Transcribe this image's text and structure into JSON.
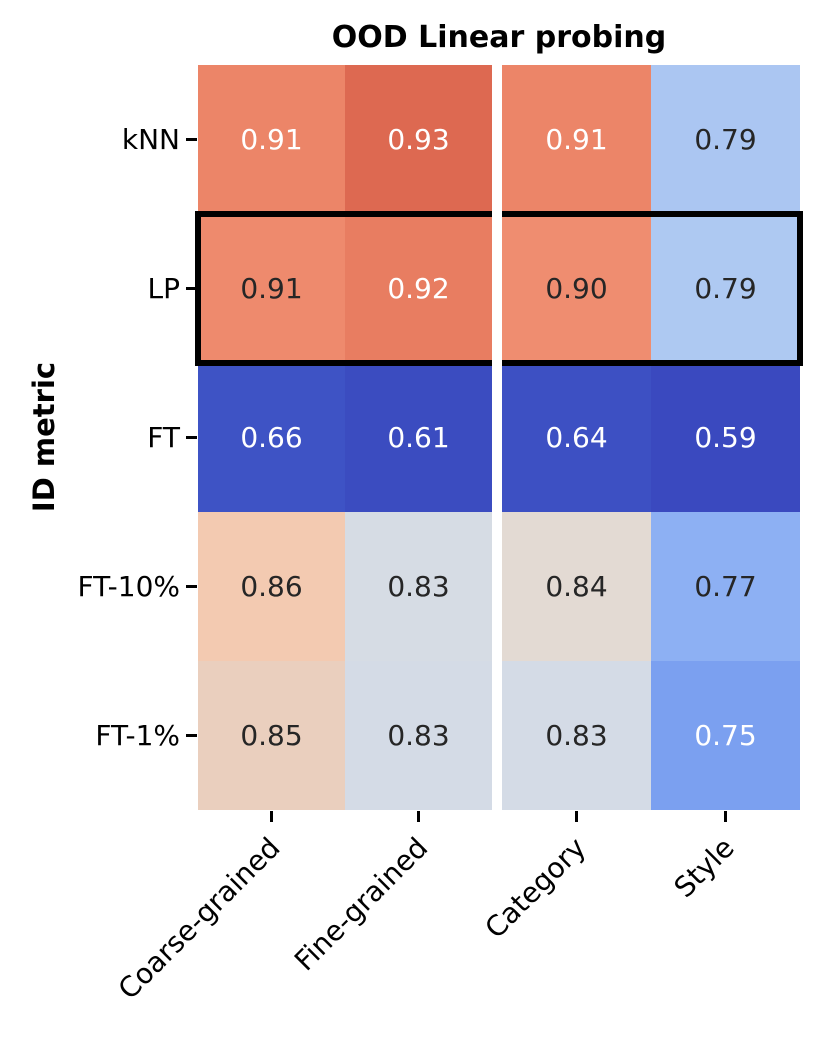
{
  "chart_data": {
    "type": "heatmap",
    "title": "OOD Linear probing",
    "ylabel": "ID metric",
    "xlabel": "",
    "rows": [
      "kNN",
      "LP",
      "FT",
      "FT-10%",
      "FT-1%"
    ],
    "columns": [
      "Coarse-grained",
      "Fine-grained",
      "Category",
      "Style"
    ],
    "column_split_after": 2,
    "values": [
      [
        0.91,
        0.93,
        0.91,
        0.79
      ],
      [
        0.91,
        0.92,
        0.9,
        0.79
      ],
      [
        0.66,
        0.61,
        0.64,
        0.59
      ],
      [
        0.86,
        0.83,
        0.84,
        0.77
      ],
      [
        0.85,
        0.83,
        0.83,
        0.75
      ]
    ],
    "value_decimals": 2,
    "cell_colors": [
      [
        "#ec8568",
        "#dd6951",
        "#ec8568",
        "#abc6f2"
      ],
      [
        "#ee8a6d",
        "#e87d61",
        "#ef8d70",
        "#aec9f2"
      ],
      [
        "#3e53c5",
        "#3b4cc0",
        "#3d50c3",
        "#3a49bf"
      ],
      [
        "#f3cab1",
        "#d6dce4",
        "#e3dad3",
        "#8db0f3"
      ],
      [
        "#eacfbe",
        "#d4dbe6",
        "#d4dbe6",
        "#7ba0f0"
      ]
    ],
    "text_colors": [
      [
        "white",
        "white",
        "white",
        "dark"
      ],
      [
        "dark",
        "white",
        "dark",
        "dark"
      ],
      [
        "white",
        "white",
        "white",
        "white"
      ],
      [
        "dark",
        "dark",
        "dark",
        "dark"
      ],
      [
        "dark",
        "dark",
        "dark",
        "white"
      ]
    ],
    "annotation_dark_color": "#262626",
    "annotation_light_color": "#ffffff",
    "highlighted_row": "LP",
    "highlight_border_color": "#000000",
    "colormap": "coolwarm",
    "background_color": "#ffffff",
    "legend": "none",
    "grid": false
  }
}
